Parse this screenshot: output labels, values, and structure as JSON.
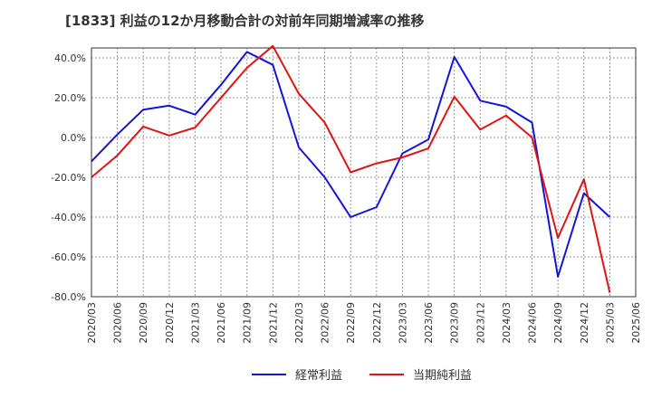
{
  "chart_data": {
    "type": "line",
    "title": "[1833]  利益の12か月移動合計の対前年同期増減率の推移",
    "xlabel": "",
    "ylabel": "",
    "ylim": [
      -80,
      45
    ],
    "yticks": [
      40,
      20,
      0,
      -20,
      -40,
      -60,
      -80
    ],
    "ytick_labels": [
      "40.0%",
      "20.0%",
      "0.0%",
      "-20.0%",
      "-40.0%",
      "-60.0%",
      "-80.0%"
    ],
    "categories": [
      "2020/03",
      "2020/06",
      "2020/09",
      "2020/12",
      "2021/03",
      "2021/06",
      "2021/09",
      "2021/12",
      "2022/03",
      "2022/06",
      "2022/09",
      "2022/12",
      "2023/03",
      "2023/06",
      "2023/09",
      "2023/12",
      "2024/03",
      "2024/06",
      "2024/09",
      "2024/12",
      "2025/03",
      "2025/06"
    ],
    "grid": true,
    "legend_position": "bottom",
    "series": [
      {
        "name": "経常利益",
        "color": "#1414dc",
        "values": [
          -12,
          1.5,
          14,
          16,
          11.5,
          26.5,
          43,
          36.5,
          -5,
          -20,
          -40,
          -35,
          -8,
          -1,
          40.5,
          18.5,
          15.5,
          7.5,
          -70,
          -28,
          -40,
          null
        ]
      },
      {
        "name": "当期純利益",
        "color": "#e01414",
        "values": [
          -20,
          -9,
          5.5,
          1,
          5,
          20,
          35,
          46,
          22,
          7.5,
          -17.5,
          -13,
          -10,
          -5.5,
          20.5,
          4,
          11,
          0,
          -50.5,
          -21,
          -78,
          null
        ]
      }
    ]
  }
}
